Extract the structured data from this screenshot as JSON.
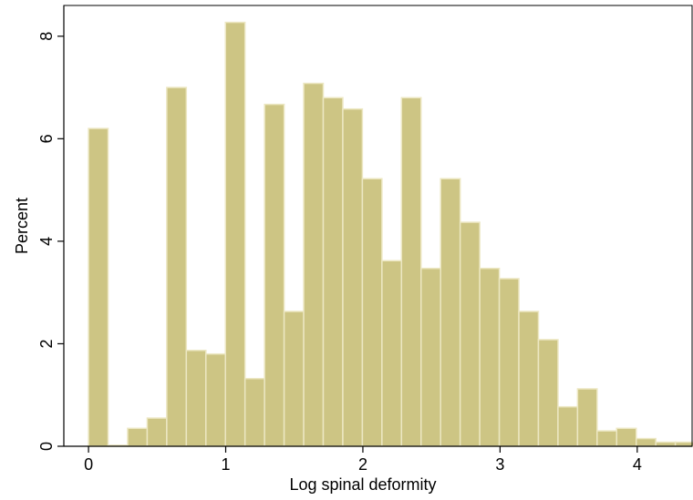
{
  "chart_data": {
    "type": "bar",
    "histogram": true,
    "xlabel": "Log spinal deformity",
    "ylabel": "Percent",
    "xlim": [
      -0.18,
      4.4
    ],
    "ylim": [
      0,
      8.6
    ],
    "xticks": [
      0,
      1,
      2,
      3,
      4
    ],
    "yticks": [
      0,
      2,
      4,
      6,
      8
    ],
    "bin_width": 0.1426,
    "bins": [
      {
        "x0": 0.0,
        "value": 6.2
      },
      {
        "x0": 0.1426,
        "value": 0.02
      },
      {
        "x0": 0.2852,
        "value": 0.35
      },
      {
        "x0": 0.4278,
        "value": 0.55
      },
      {
        "x0": 0.5704,
        "value": 7.0
      },
      {
        "x0": 0.713,
        "value": 1.87
      },
      {
        "x0": 0.8556,
        "value": 1.8
      },
      {
        "x0": 0.9982,
        "value": 8.27
      },
      {
        "x0": 1.1408,
        "value": 1.32
      },
      {
        "x0": 1.2834,
        "value": 6.67
      },
      {
        "x0": 1.426,
        "value": 2.63
      },
      {
        "x0": 1.5686,
        "value": 7.08
      },
      {
        "x0": 1.7112,
        "value": 6.8
      },
      {
        "x0": 1.8538,
        "value": 6.58
      },
      {
        "x0": 1.9964,
        "value": 5.22
      },
      {
        "x0": 2.139,
        "value": 3.62
      },
      {
        "x0": 2.2816,
        "value": 6.8
      },
      {
        "x0": 2.4242,
        "value": 3.47
      },
      {
        "x0": 2.5668,
        "value": 5.22
      },
      {
        "x0": 2.7094,
        "value": 4.37
      },
      {
        "x0": 2.852,
        "value": 3.47
      },
      {
        "x0": 2.9946,
        "value": 3.27
      },
      {
        "x0": 3.1372,
        "value": 2.63
      },
      {
        "x0": 3.2798,
        "value": 2.08
      },
      {
        "x0": 3.4224,
        "value": 0.77
      },
      {
        "x0": 3.565,
        "value": 1.12
      },
      {
        "x0": 3.7076,
        "value": 0.3
      },
      {
        "x0": 3.8502,
        "value": 0.35
      },
      {
        "x0": 3.9928,
        "value": 0.15
      },
      {
        "x0": 4.1354,
        "value": 0.08
      },
      {
        "x0": 4.278,
        "value": 0.08
      }
    ],
    "grid": false,
    "legend": "none",
    "colors": {
      "bar_fill": "#cdc584",
      "bar_stroke": "#ece7c2",
      "axis": "#000000"
    }
  }
}
